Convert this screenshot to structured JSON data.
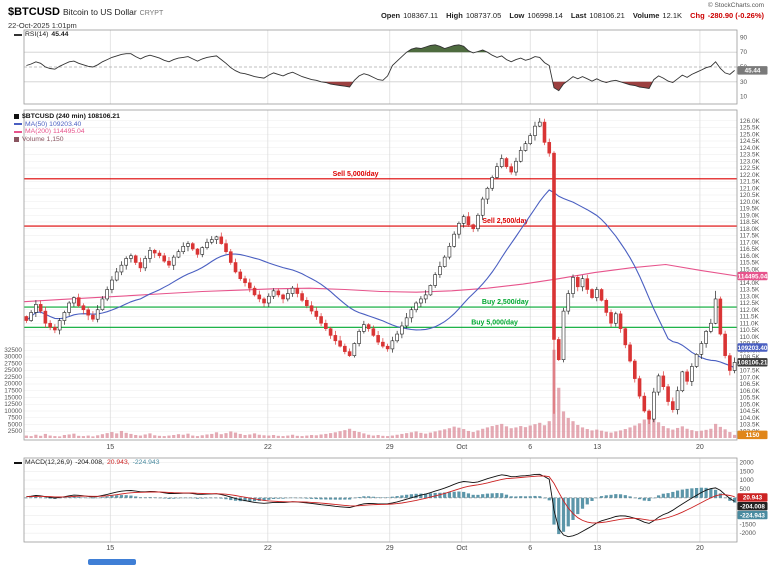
{
  "header": {
    "symbol": "$BTCUSD",
    "name": "Bitcoin to US Dollar",
    "exchange": "CRYPT",
    "datetime": "22-Oct-2025 1:01pm",
    "copyright": "© StockCharts.com"
  },
  "quote": {
    "open_label": "Open",
    "open": "108367.11",
    "high_label": "High",
    "high": "108737.05",
    "low_label": "Low",
    "low": "106998.14",
    "last_label": "Last",
    "last": "108106.21",
    "vol_label": "Volume",
    "volume": "12.1K",
    "chg_label": "Chg",
    "chg": "-280.90 (-0.26%)"
  },
  "legends": {
    "rsi": {
      "name": "RSI(14)",
      "value": "45.44"
    },
    "price": {
      "rows": [
        {
          "text": "$BTCUSD (240 min) 108106.21"
        },
        {
          "text": "MA(50) 109203.40"
        },
        {
          "text": "MA(200) 114495.04"
        },
        {
          "text": "Volume 1,150"
        }
      ]
    },
    "macd": {
      "name": "MACD(12,26,9)",
      "v1": "-204.008,",
      "v2": "20.943,",
      "v3": "-224.943"
    }
  },
  "colors": {
    "up_fill": "#ffffff",
    "up_stroke": "#222222",
    "down": "#d93434",
    "volume": "#dd93a0",
    "ma50": "#4a5fc1",
    "ma200": "#e7548c",
    "sell": "#dd0000",
    "buy": "#00a830",
    "rsi_line": "#333333",
    "rsi_over": "#4e6b3f",
    "rsi_under": "#9c4040",
    "macd_hist": "#4a8ba0",
    "macd_line": "#111111",
    "macd_signal": "#cc2222",
    "grid": "#ececec",
    "grid_week": "#d9d9d9",
    "border": "#999999",
    "chg_neg": "#cc0000",
    "callout_last": "#3a3a3a",
    "scroll_thumb": "#3f7fd6",
    "legend_volume": "#8a5560"
  },
  "chart_data": [
    {
      "id": "rsi",
      "type": "line",
      "title": "RSI(14)",
      "last": 45.44,
      "axis": {
        "min": 0,
        "max": 100
      },
      "y_ticks": [
        90,
        70,
        50,
        30,
        10
      ],
      "overbought": 70,
      "oversold": 30,
      "midline": 50,
      "callout": {
        "text": "45.44",
        "value": 45.44,
        "color": "#7a7a7a"
      },
      "values": [
        52,
        54,
        57,
        55,
        50,
        48,
        47,
        51,
        54,
        57,
        58,
        55,
        53,
        51,
        50,
        53,
        57,
        60,
        63,
        65,
        67,
        68,
        68,
        64,
        61,
        64,
        66,
        64,
        62,
        59,
        57,
        60,
        62,
        63,
        64,
        61,
        58,
        61,
        63,
        64,
        65,
        60,
        55,
        49,
        45,
        42,
        41,
        39,
        37,
        36,
        35,
        39,
        42,
        40,
        38,
        41,
        43,
        40,
        37,
        35,
        33,
        32,
        30,
        29,
        27,
        26,
        25,
        24,
        23,
        32,
        38,
        41,
        39,
        36,
        33,
        32,
        38,
        52,
        58,
        64,
        70,
        74,
        76,
        75,
        77,
        79,
        80,
        78,
        75,
        77,
        79,
        80,
        78,
        72,
        69,
        71,
        73,
        70,
        66,
        63,
        65,
        60,
        57,
        60,
        62,
        59,
        61,
        64,
        63,
        56,
        52,
        22,
        18,
        27,
        32,
        37,
        34,
        37,
        34,
        31,
        34,
        31,
        29,
        31,
        32,
        30,
        28,
        26,
        25,
        23,
        22,
        21,
        33,
        38,
        35,
        31,
        29,
        34,
        39,
        36,
        40,
        43,
        46,
        49,
        51,
        57,
        48,
        42,
        40,
        45.44
      ]
    },
    {
      "id": "price",
      "type": "candlestick",
      "symbol": "$BTCUSD",
      "interval": "240 min",
      "last": 108106.21,
      "units": "K = thousands USD",
      "price_axis": {
        "min": 102.5,
        "max": 126.5,
        "tick_min": 103.0,
        "tick_max": 126.0,
        "step": 0.5,
        "suffix": "K"
      },
      "volume_axis": {
        "scale_max": 35000,
        "tick_step": 2500,
        "tick_max": 32500
      },
      "x_axis": {
        "labels": [
          "15",
          "22",
          "29",
          "Oct",
          "6",
          "13",
          "20"
        ],
        "fractions": [
          0.121,
          0.342,
          0.513,
          0.614,
          0.71,
          0.804,
          0.948
        ]
      },
      "annotations": [
        {
          "text": "Sell 5,000/day",
          "value_k": 121.7,
          "color": "#dd0000",
          "label_f": 0.465
        },
        {
          "text": "Sell 2,500/day",
          "value_k": 118.2,
          "color": "#dd0000",
          "label_f": 0.675
        },
        {
          "text": "Buy 2,500/day",
          "value_k": 112.2,
          "color": "#00a830",
          "label_f": 0.675
        },
        {
          "text": "Buy 5,000/day",
          "value_k": 110.7,
          "color": "#00a830",
          "label_f": 0.66
        }
      ],
      "callouts": [
        {
          "text": "114495.04",
          "value_k": 114.495,
          "color": "#e7548c"
        },
        {
          "text": "109203.40",
          "value_k": 109.203,
          "color": "#4a5fc1"
        },
        {
          "text": "108106.21",
          "value_k": 108.106,
          "color": "#3a3a3a"
        }
      ],
      "volume_callout": {
        "text": "1150",
        "value": 1150,
        "color": "#e0861a"
      },
      "wick_overrides": [
        {
          "i": 108,
          "high_k": 126.2
        },
        {
          "i": 111,
          "low_k": 104.3
        },
        {
          "i": 145,
          "high_k": 113.4
        }
      ],
      "ma50_window": 25,
      "ma200_k": [
        112.6,
        112.75,
        112.9,
        113.05,
        113.2,
        113.35,
        113.45,
        113.55,
        113.6,
        113.5,
        113.35,
        113.3,
        113.4,
        113.6,
        113.9,
        114.3,
        114.75,
        115.1,
        115.35,
        114.9,
        114.5
      ],
      "closes_k": [
        111.2,
        111.8,
        112.4,
        111.9,
        111.0,
        110.7,
        110.5,
        111.2,
        111.8,
        112.5,
        112.9,
        112.3,
        112.0,
        111.6,
        111.3,
        112.0,
        112.8,
        113.5,
        114.2,
        114.8,
        115.3,
        115.8,
        116.0,
        115.5,
        115.1,
        115.8,
        116.4,
        116.2,
        116.0,
        115.6,
        115.3,
        115.9,
        116.3,
        116.7,
        116.9,
        116.5,
        116.1,
        116.6,
        117.0,
        117.2,
        117.4,
        116.9,
        116.3,
        115.5,
        114.8,
        114.3,
        114.0,
        113.6,
        113.1,
        112.8,
        112.5,
        113.0,
        113.4,
        113.1,
        112.8,
        113.2,
        113.6,
        113.2,
        112.7,
        112.3,
        111.9,
        111.5,
        111.0,
        110.6,
        110.1,
        109.7,
        109.3,
        108.9,
        108.6,
        109.5,
        110.4,
        110.9,
        110.6,
        110.1,
        109.6,
        109.3,
        109.1,
        109.7,
        110.2,
        110.8,
        111.4,
        112.0,
        112.5,
        112.8,
        113.1,
        113.8,
        114.6,
        115.2,
        115.9,
        116.7,
        117.6,
        118.4,
        118.9,
        118.3,
        118.0,
        119.0,
        120.2,
        121.0,
        121.8,
        122.6,
        123.2,
        122.6,
        122.2,
        123.0,
        123.8,
        124.3,
        124.9,
        125.6,
        125.9,
        124.4,
        123.6,
        109.8,
        108.3,
        111.9,
        113.2,
        114.4,
        113.7,
        114.3,
        113.5,
        112.9,
        113.5,
        112.7,
        111.8,
        111.0,
        111.7,
        110.6,
        109.4,
        108.2,
        106.9,
        105.6,
        104.5,
        103.9,
        105.9,
        107.1,
        106.3,
        105.2,
        104.6,
        106.0,
        107.4,
        106.7,
        107.8,
        108.7,
        109.5,
        110.4,
        111.0,
        112.8,
        110.2,
        108.6,
        107.5,
        108.1
      ],
      "volumes": [
        900,
        700,
        1200,
        800,
        1500,
        900,
        700,
        600,
        1100,
        1300,
        1600,
        800,
        700,
        900,
        600,
        1000,
        1400,
        1800,
        2200,
        1700,
        2600,
        1900,
        1500,
        1100,
        900,
        1300,
        1700,
        1000,
        800,
        700,
        900,
        1100,
        1400,
        1200,
        1600,
        900,
        700,
        1000,
        1300,
        1500,
        2100,
        1400,
        1800,
        2400,
        2000,
        1500,
        1100,
        1300,
        1700,
        1200,
        1000,
        900,
        1100,
        800,
        700,
        900,
        1200,
        800,
        700,
        900,
        1100,
        1000,
        1300,
        1500,
        1800,
        2100,
        2500,
        2900,
        3400,
        2600,
        2200,
        1700,
        1200,
        900,
        1100,
        800,
        700,
        900,
        1200,
        1500,
        1800,
        2100,
        2400,
        1900,
        1600,
        2000,
        2400,
        2800,
        3200,
        3600,
        4200,
        3800,
        3300,
        2600,
        2200,
        2800,
        3400,
        3900,
        4400,
        4800,
        5200,
        4300,
        3600,
        3900,
        4400,
        4000,
        4600,
        5100,
        5600,
        4700,
        6200,
        32500,
        18500,
        9800,
        7400,
        6200,
        4800,
        3900,
        3300,
        2800,
        3100,
        2700,
        2300,
        2000,
        2400,
        2800,
        3300,
        3900,
        4600,
        5400,
        6800,
        9200,
        7600,
        5800,
        4400,
        3600,
        3100,
        3700,
        4300,
        3400,
        2900,
        2500,
        2700,
        3000,
        3400,
        5200,
        4100,
        3200,
        2200,
        1150
      ]
    },
    {
      "id": "macd",
      "type": "line+histogram",
      "params": "12,26,9",
      "last_macd": -204.008,
      "last_signal": 20.943,
      "last_hist": -224.943,
      "axis": {
        "min": -2500,
        "max": 2250,
        "tick_min": -2000,
        "tick_max": 2000,
        "tick_step": 500
      },
      "signal_ema_alpha": 0.2,
      "callouts": [
        {
          "text": "20.943",
          "value": 21,
          "color": "#cc2222"
        },
        {
          "text": "-204.008",
          "value": -204,
          "color": "#222222"
        },
        {
          "text": "-224.943",
          "value": -225,
          "color": "#4a8ba0"
        }
      ],
      "macd": [
        60,
        90,
        130,
        110,
        60,
        20,
        -10,
        20,
        60,
        110,
        150,
        140,
        110,
        80,
        50,
        80,
        130,
        190,
        260,
        320,
        370,
        400,
        410,
        380,
        340,
        340,
        360,
        350,
        320,
        280,
        240,
        240,
        250,
        260,
        270,
        240,
        200,
        200,
        210,
        220,
        230,
        180,
        120,
        40,
        -40,
        -110,
        -160,
        -210,
        -260,
        -290,
        -310,
        -290,
        -260,
        -260,
        -270,
        -250,
        -220,
        -230,
        -260,
        -290,
        -320,
        -350,
        -390,
        -420,
        -450,
        -480,
        -510,
        -530,
        -550,
        -480,
        -400,
        -340,
        -320,
        -330,
        -350,
        -350,
        -340,
        -290,
        -230,
        -160,
        -80,
        0,
        80,
        150,
        210,
        290,
        380,
        460,
        550,
        650,
        760,
        860,
        920,
        900,
        860,
        900,
        990,
        1080,
        1160,
        1240,
        1300,
        1260,
        1190,
        1200,
        1240,
        1250,
        1280,
        1320,
        1330,
        1200,
        1050,
        -700,
        -1750,
        -2100,
        -2200,
        -2150,
        -2050,
        -1900,
        -1750,
        -1600,
        -1420,
        -1300,
        -1220,
        -1150,
        -1060,
        -1020,
        -1030,
        -1080,
        -1160,
        -1260,
        -1380,
        -1450,
        -1300,
        -1100,
        -950,
        -850,
        -700,
        -520,
        -350,
        -180,
        -20,
        140,
        300,
        430,
        520,
        560,
        420,
        180,
        -40,
        -204
      ]
    }
  ]
}
